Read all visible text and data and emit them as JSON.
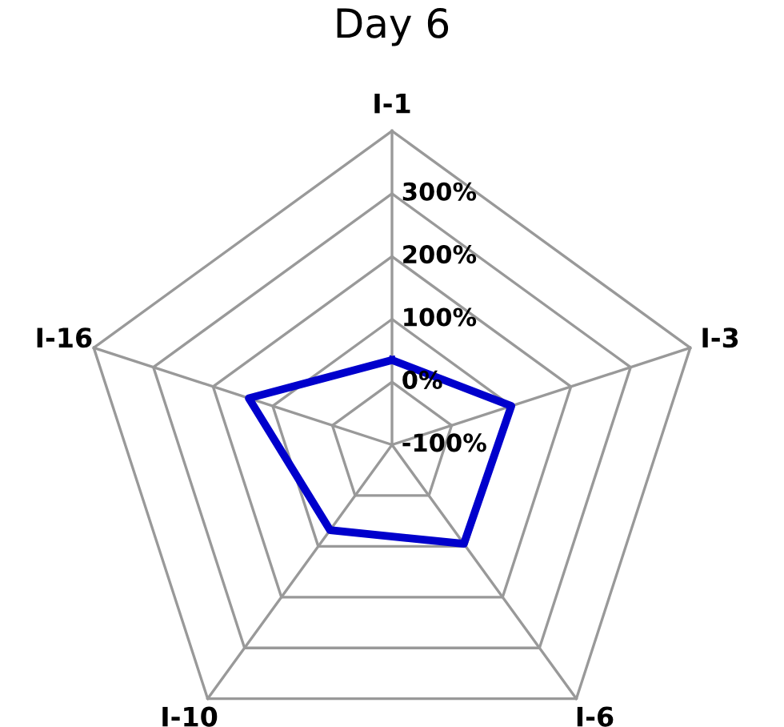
{
  "chart_data": {
    "type": "radar",
    "title": "Day 6",
    "categories": [
      "I-1",
      "I-3",
      "I-6",
      "I-10",
      "I-16"
    ],
    "series": [
      {
        "color": "#0000cc",
        "values": [
          35,
          100,
          95,
          68,
          140
        ]
      }
    ],
    "ylim": [
      -100,
      400
    ],
    "yticks": [
      {
        "value": -100,
        "label": "-100%"
      },
      {
        "value": 0,
        "label": "0%"
      },
      {
        "value": 100,
        "label": "100%"
      },
      {
        "value": 200,
        "label": "200%"
      },
      {
        "value": 300,
        "label": "300%"
      }
    ],
    "grid": true
  }
}
